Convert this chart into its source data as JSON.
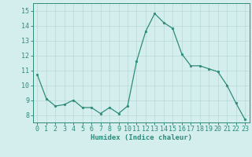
{
  "x": [
    0,
    1,
    2,
    3,
    4,
    5,
    6,
    7,
    8,
    9,
    10,
    11,
    12,
    13,
    14,
    15,
    16,
    17,
    18,
    19,
    20,
    21,
    22,
    23
  ],
  "y": [
    10.7,
    9.1,
    8.6,
    8.7,
    9.0,
    8.5,
    8.5,
    8.1,
    8.5,
    8.1,
    8.6,
    11.6,
    13.6,
    14.8,
    14.2,
    13.8,
    12.1,
    11.3,
    11.3,
    11.1,
    10.9,
    10.0,
    8.8,
    7.7
  ],
  "line_color": "#2e8b7a",
  "marker": "o",
  "marker_size": 1.8,
  "line_width": 0.9,
  "bg_color": "#d4eeee",
  "grid_color": "#b8d8d8",
  "xlabel": "Humidex (Indice chaleur)",
  "xlabel_fontsize": 6.5,
  "tick_fontsize": 6,
  "ylim": [
    7.5,
    15.5
  ],
  "xlim": [
    -0.5,
    23.5
  ],
  "yticks": [
    8,
    9,
    10,
    11,
    12,
    13,
    14,
    15
  ],
  "xticks": [
    0,
    1,
    2,
    3,
    4,
    5,
    6,
    7,
    8,
    9,
    10,
    11,
    12,
    13,
    14,
    15,
    16,
    17,
    18,
    19,
    20,
    21,
    22,
    23
  ]
}
